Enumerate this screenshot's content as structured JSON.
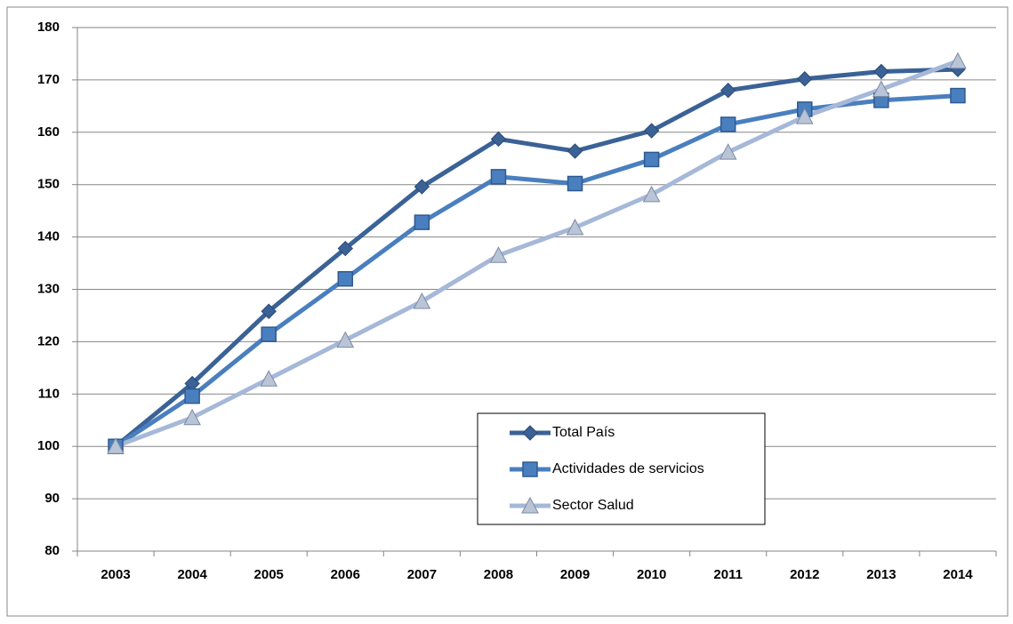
{
  "chart_data": {
    "type": "line",
    "categories": [
      "2003",
      "2004",
      "2005",
      "2006",
      "2007",
      "2008",
      "2009",
      "2010",
      "2011",
      "2012",
      "2013",
      "2014"
    ],
    "series": [
      {
        "name": "Total País",
        "color": "#3a6296",
        "marker": "diamond",
        "values": [
          100,
          112,
          125.8,
          137.8,
          149.6,
          158.7,
          156.4,
          160.3,
          168,
          170.2,
          171.6,
          172
        ]
      },
      {
        "name": "Actividades de servicios",
        "color": "#4a7fbf",
        "marker": "square",
        "values": [
          100,
          109.6,
          121.4,
          132,
          142.8,
          151.5,
          150.2,
          154.8,
          161.5,
          164.4,
          166.1,
          167
        ]
      },
      {
        "name": "Sector Salud",
        "color": "#a6b8d8",
        "marker": "triangle",
        "values": [
          100,
          105.5,
          112.9,
          120.3,
          127.7,
          136.5,
          141.8,
          148.1,
          156.2,
          163,
          168.2,
          173.6
        ]
      }
    ],
    "ylim": [
      80,
      180
    ],
    "yticks": [
      80,
      90,
      100,
      110,
      120,
      130,
      140,
      150,
      160,
      170,
      180
    ],
    "grid": true
  }
}
